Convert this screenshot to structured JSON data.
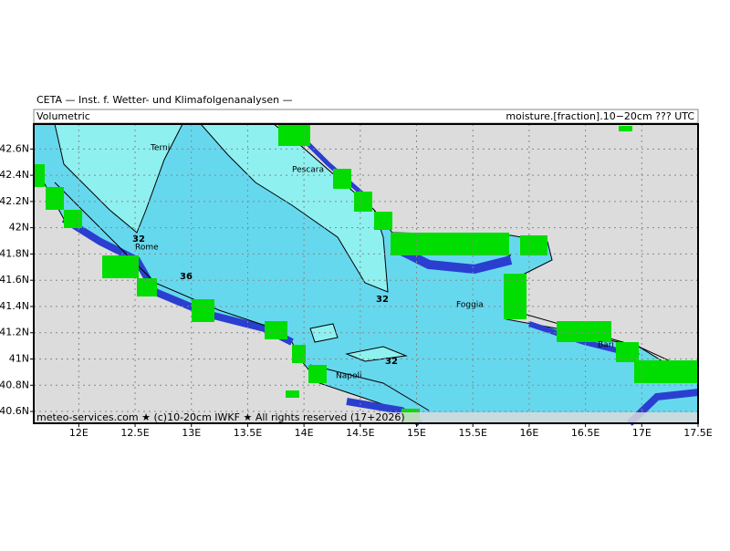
{
  "header": {
    "title": "CETA — Inst. f. Wetter- und Klimafolgenanalysen —",
    "left": "Volumetric",
    "right": "moisture.[fraction].10−20cm ??? UTC"
  },
  "map": {
    "lon_range": [
      11.6,
      17.5
    ],
    "lat_range": [
      40.51,
      42.79
    ],
    "lon_ticks": [
      {
        "value": 12,
        "label": "12E"
      },
      {
        "value": 12.5,
        "label": "12.5E"
      },
      {
        "value": 13,
        "label": "13E"
      },
      {
        "value": 13.5,
        "label": "13.5E"
      },
      {
        "value": 14,
        "label": "14E"
      },
      {
        "value": 14.5,
        "label": "14.5E"
      },
      {
        "value": 15,
        "label": "15E"
      },
      {
        "value": 15.5,
        "label": "15.5E"
      },
      {
        "value": 16,
        "label": "16E"
      },
      {
        "value": 16.5,
        "label": "16.5E"
      },
      {
        "value": 17,
        "label": "17E"
      },
      {
        "value": 17.5,
        "label": "17.5E"
      }
    ],
    "lat_ticks": [
      {
        "value": 42.6,
        "label": "42.6N"
      },
      {
        "value": 42.4,
        "label": "42.4N"
      },
      {
        "value": 42.2,
        "label": "42.2N"
      },
      {
        "value": 42,
        "label": "42N"
      },
      {
        "value": 41.8,
        "label": "41.8N"
      },
      {
        "value": 41.6,
        "label": "41.6N"
      },
      {
        "value": 41.4,
        "label": "41.4N"
      },
      {
        "value": 41.2,
        "label": "41.2N"
      },
      {
        "value": 41,
        "label": "41N"
      },
      {
        "value": 40.8,
        "label": "40.8N"
      },
      {
        "value": 40.6,
        "label": "40.6N"
      }
    ],
    "cities": [
      "Terni",
      "Pescara",
      "Rome",
      "Foggia",
      "Napoli",
      "Bari"
    ],
    "contour_labels": [
      32,
      36,
      32,
      32
    ]
  },
  "footer": "meteo-services.com ★ (c)10-20cm IWKF ★ All rights reserved (17+2026)"
}
